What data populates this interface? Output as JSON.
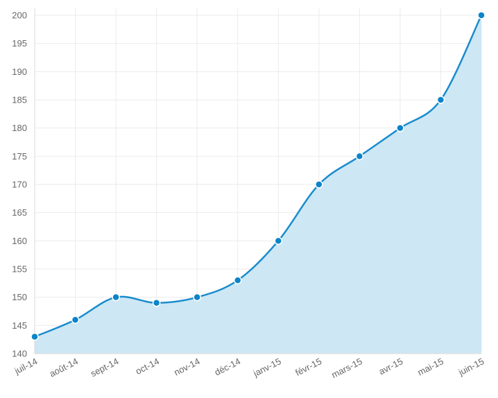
{
  "chart_data": {
    "type": "area",
    "categories": [
      "juil-14",
      "août-14",
      "sept-14",
      "oct-14",
      "nov-14",
      "déc-14",
      "janv-15",
      "févr-15",
      "mars-15",
      "avr-15",
      "mai-15",
      "juin-15"
    ],
    "series": [
      {
        "values": [
          143,
          146,
          150,
          149,
          150,
          153,
          160,
          170,
          175,
          180,
          185,
          200
        ]
      }
    ],
    "y_ticks": [
      140,
      145,
      150,
      155,
      160,
      165,
      170,
      175,
      180,
      185,
      190,
      195,
      200
    ],
    "ylim": [
      140,
      200
    ],
    "grid": true,
    "line_color": "#1a8ccc",
    "fill_color": "#cde7f5",
    "point_color": "#0b84c9"
  }
}
